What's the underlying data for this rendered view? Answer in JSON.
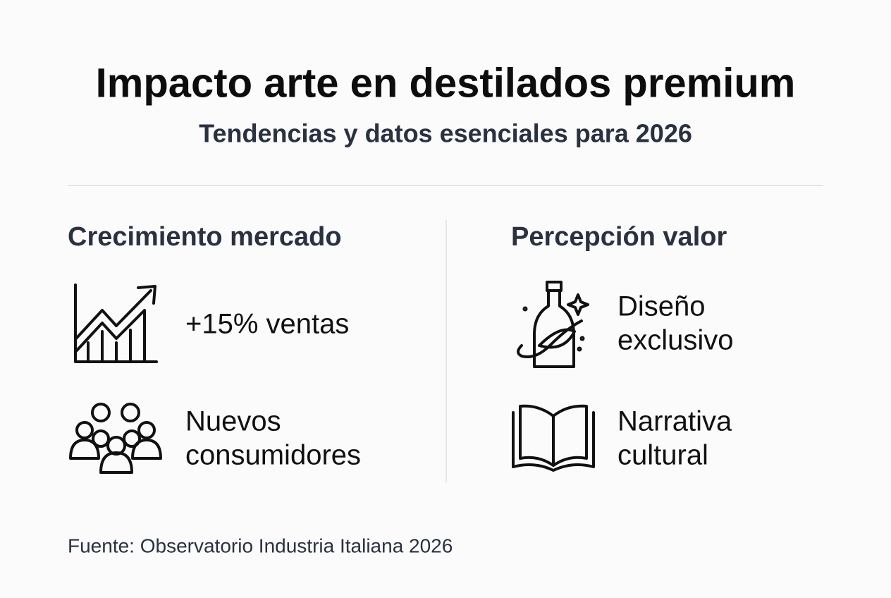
{
  "header": {
    "title": "Impacto arte en destilados premium",
    "subtitle": "Tendencias y datos esenciales para 2026"
  },
  "columns": [
    {
      "heading": "Crecimiento mercado",
      "items": [
        {
          "lines": [
            "+15% ventas"
          ]
        },
        {
          "lines": [
            "Nuevos",
            "consumidores"
          ]
        }
      ]
    },
    {
      "heading": "Percepción valor",
      "items": [
        {
          "lines": [
            "Diseño",
            "exclusivo"
          ]
        },
        {
          "lines": [
            "Narrativa",
            "cultural"
          ]
        }
      ]
    }
  ],
  "footer": {
    "source": "Fuente: Observatorio Industria Italiana 2026"
  }
}
